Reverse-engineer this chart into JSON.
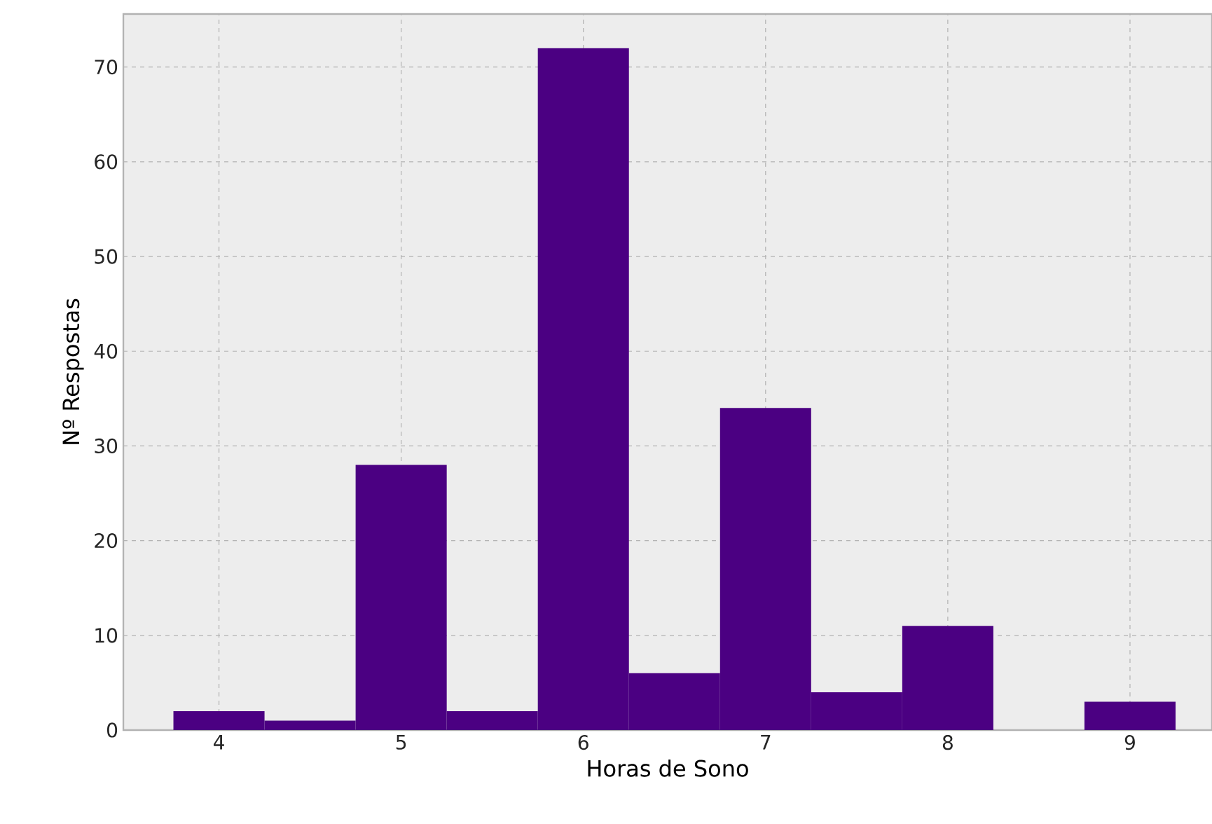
{
  "chart_data": {
    "type": "histogram",
    "xlabel": "Horas de Sono",
    "ylabel": "Nº Respostas",
    "bins": [
      3.75,
      4.25,
      4.75,
      5.25,
      5.75,
      6.25,
      6.75,
      7.25,
      7.75,
      8.25,
      8.75,
      9.25
    ],
    "values": [
      2,
      1,
      28,
      2,
      72,
      6,
      34,
      4,
      11,
      0,
      3
    ],
    "color": "#4b0082",
    "xlim": [
      3.475,
      9.45
    ],
    "ylim": [
      0,
      75.6
    ],
    "xticks": [
      4,
      5,
      6,
      7,
      8,
      9
    ],
    "yticks": [
      0,
      10,
      20,
      30,
      40,
      50,
      60,
      70
    ],
    "grid": true
  }
}
